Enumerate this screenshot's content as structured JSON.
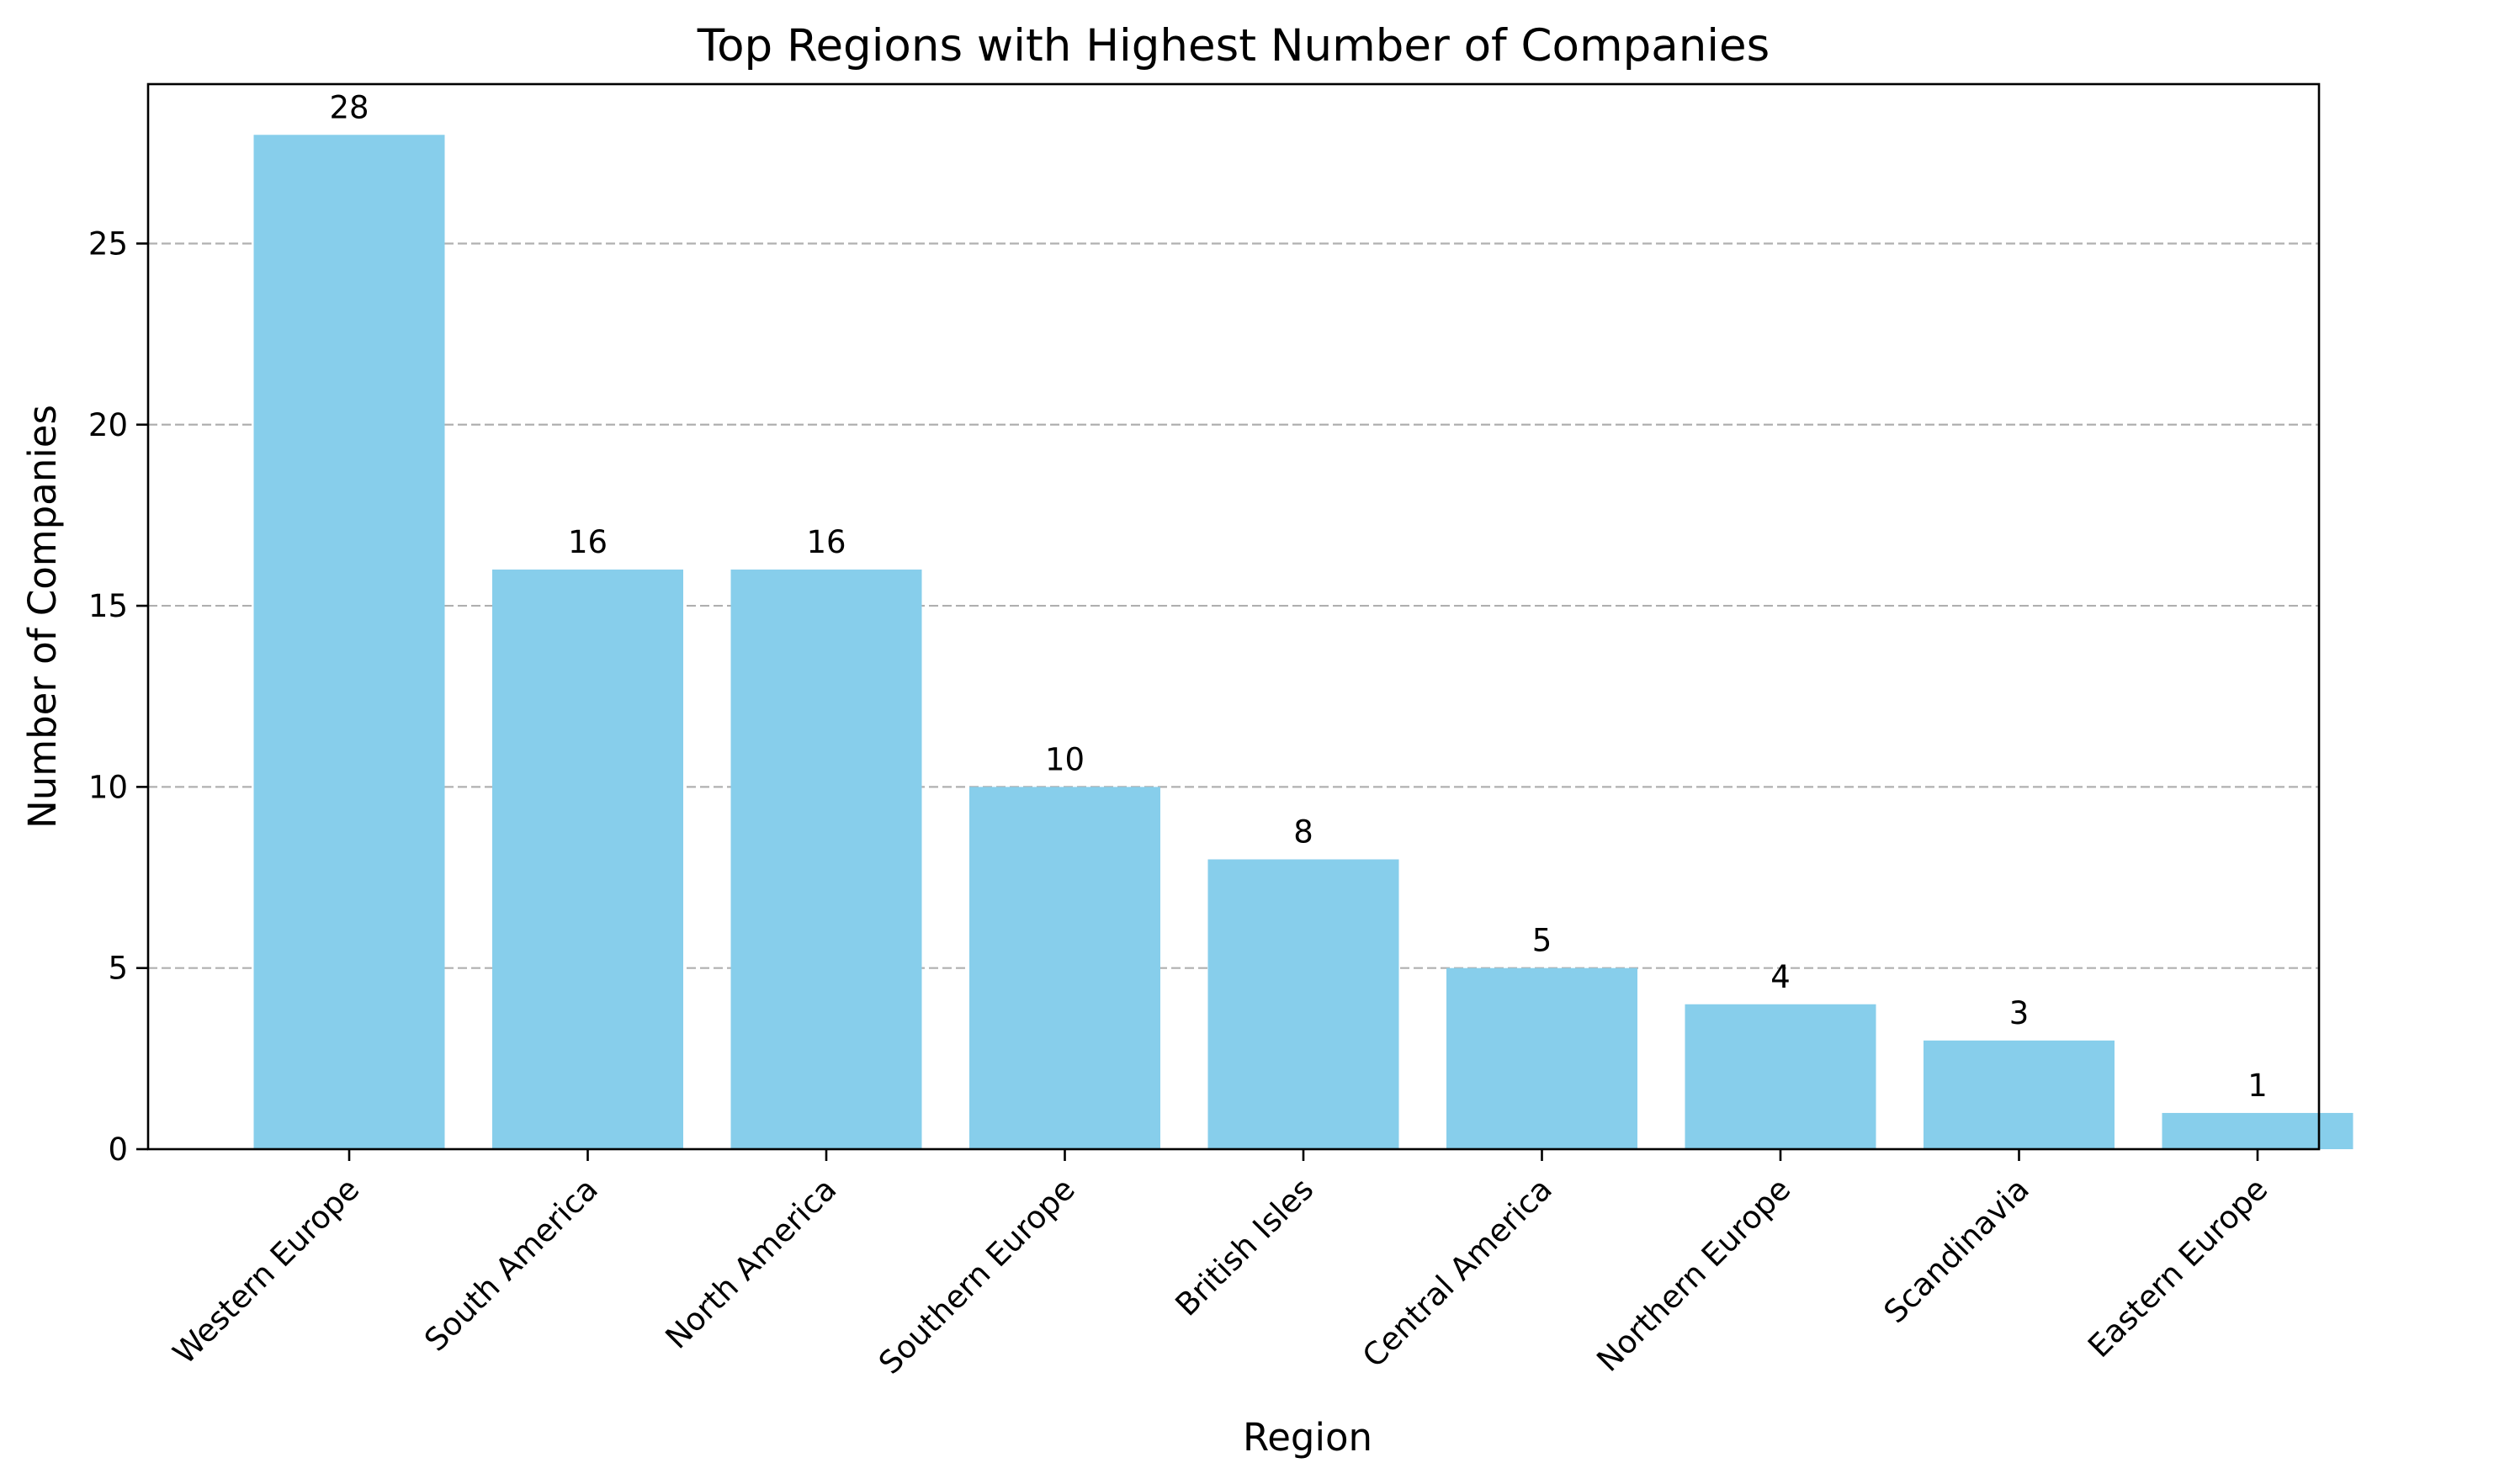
{
  "chart_data": {
    "type": "bar",
    "title": "Top Regions with Highest Number of Companies",
    "xlabel": "Region",
    "ylabel": "Number of Companies",
    "categories": [
      "Western Europe",
      "South America",
      "North America",
      "Southern Europe",
      "British Isles",
      "Central America",
      "Northern Europe",
      "Scandinavia",
      "Eastern Europe"
    ],
    "values": [
      28,
      16,
      16,
      10,
      8,
      5,
      4,
      3,
      1
    ],
    "data_labels": [
      "28",
      "16",
      "16",
      "10",
      "8",
      "5",
      "4",
      "3",
      "1"
    ],
    "ylim": [
      0,
      29.4
    ],
    "yticks": [
      0,
      5,
      10,
      15,
      20,
      25
    ],
    "ytick_labels": [
      "0",
      "5",
      "10",
      "15",
      "20",
      "25"
    ],
    "grid": {
      "axis": "y",
      "style": "dashed"
    },
    "bar_color": "#87CEEB"
  }
}
